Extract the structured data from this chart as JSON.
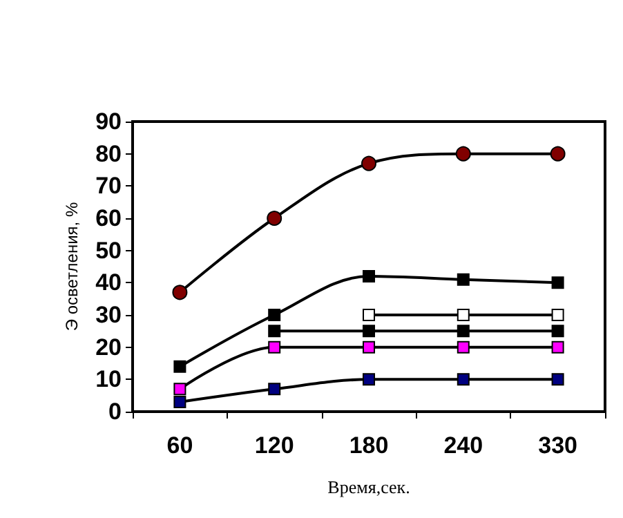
{
  "chart_data": {
    "type": "line",
    "xlabel": "Время,сек.",
    "ylabel": "Э осветления, %",
    "categories": [
      "60",
      "120",
      "180",
      "240",
      "330"
    ],
    "ylim": [
      0,
      90
    ],
    "yticks": [
      0,
      10,
      20,
      30,
      40,
      50,
      60,
      70,
      80,
      90
    ],
    "grid": false,
    "line_style": "solid",
    "series": [
      {
        "color": "#800000",
        "marker": "circle",
        "values": [
          37,
          60,
          77,
          80,
          80
        ]
      },
      {
        "color": "#000000",
        "marker": "square",
        "values": [
          14,
          30,
          42,
          41,
          40
        ]
      },
      {
        "color": "#ffffff",
        "marker": "square",
        "values": [
          null,
          null,
          30,
          30,
          30
        ]
      },
      {
        "color": "#000000",
        "marker": "square",
        "values": [
          null,
          25,
          25,
          25,
          25
        ]
      },
      {
        "color": "#ff00ff",
        "marker": "square",
        "values": [
          7,
          20,
          20,
          20,
          20
        ]
      },
      {
        "color": "#000080",
        "marker": "square",
        "values": [
          3,
          7,
          10,
          10,
          10
        ]
      }
    ]
  }
}
